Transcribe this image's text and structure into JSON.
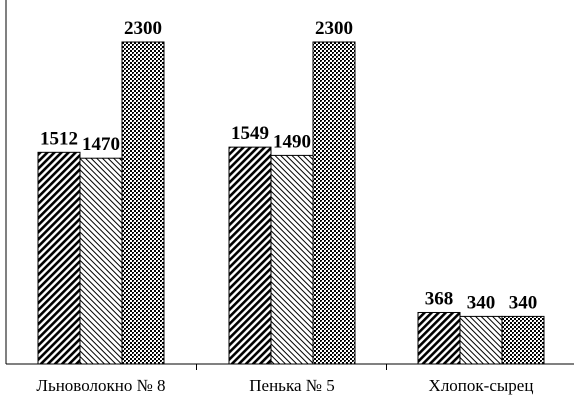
{
  "chart_data": {
    "type": "bar",
    "categories": [
      "Льноволокно № 8",
      "Пенька № 5",
      "Хлопок-сырец"
    ],
    "series": [
      {
        "values": [
          1512,
          1549,
          368
        ],
        "fill": "diagonal-dense-hatch"
      },
      {
        "values": [
          1470,
          1490,
          340
        ],
        "fill": "light-diagonal-hatch"
      },
      {
        "values": [
          2300,
          2300,
          340
        ],
        "fill": "dotted-grid"
      }
    ],
    "ylim": [
      0,
      2300
    ],
    "grid": false,
    "legend": "none",
    "title": "",
    "xlabel": "",
    "ylabel": ""
  }
}
